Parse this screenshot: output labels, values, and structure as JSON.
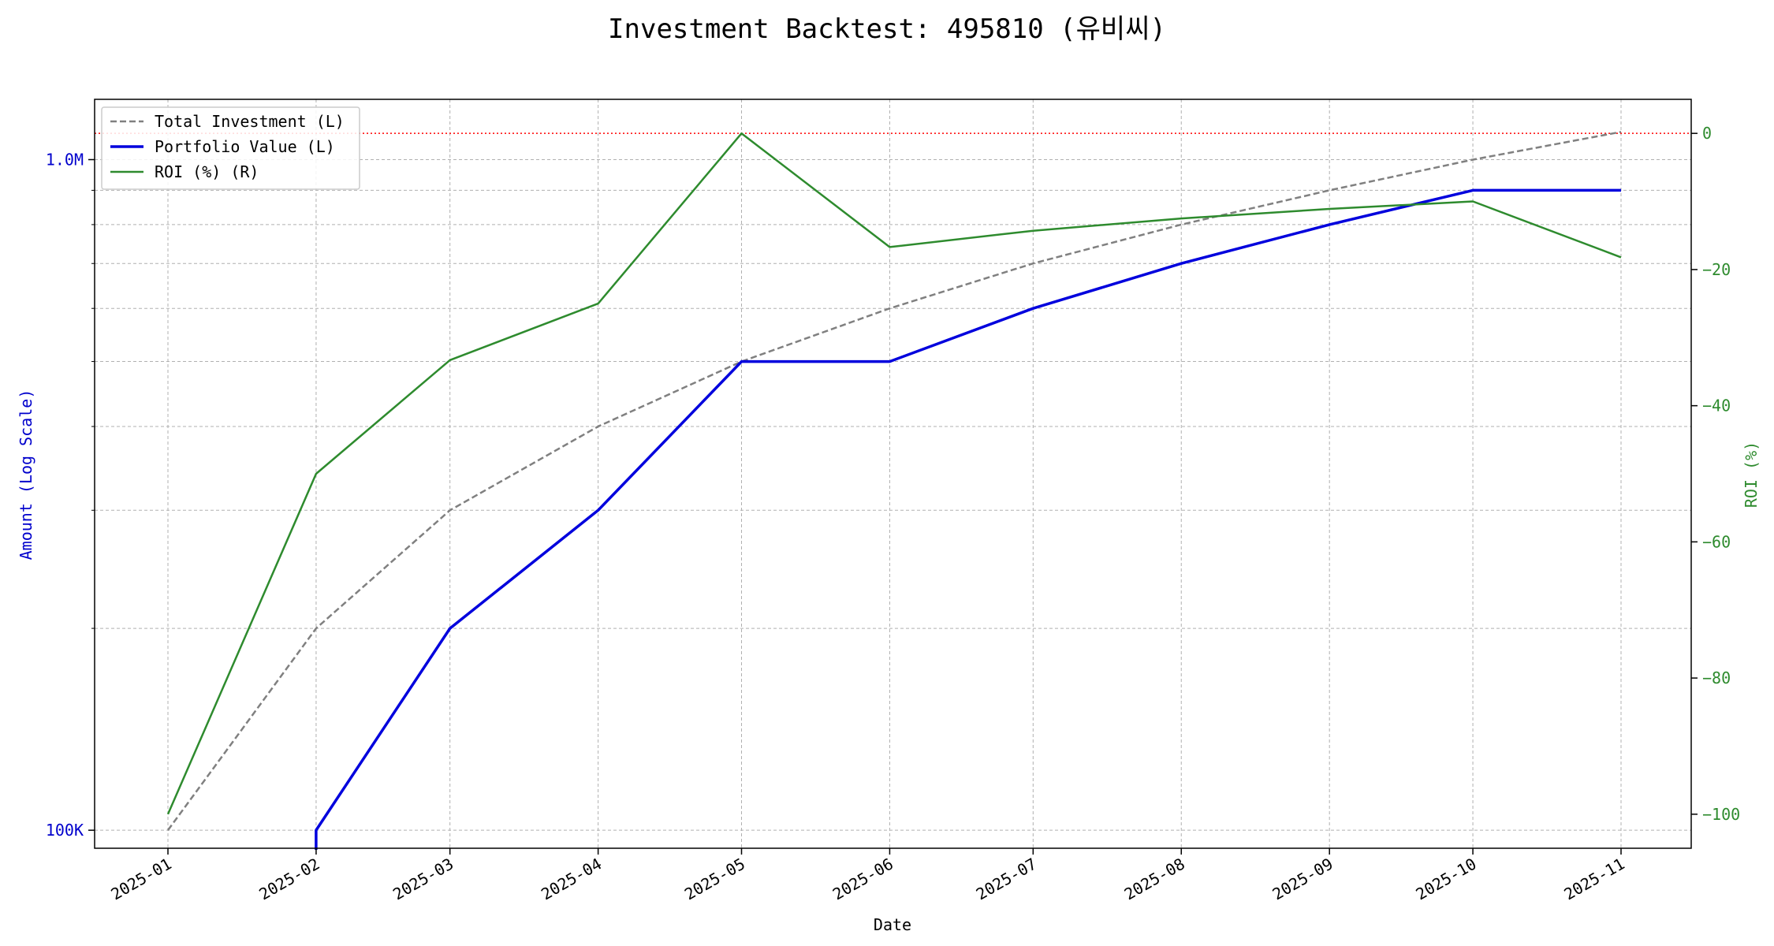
{
  "chart_data": {
    "type": "line",
    "title": "Investment Backtest: 495810 (유비씨)",
    "xlabel": "Date",
    "ylabel_left": "Amount (Log Scale)",
    "ylabel_right": "ROI (%)",
    "x": [
      "2025-01",
      "2025-02",
      "2025-03",
      "2025-04",
      "2025-05",
      "2025-06",
      "2025-07",
      "2025-08",
      "2025-09",
      "2025-10",
      "2025-11"
    ],
    "x_dates": [
      "2024-12-31",
      "2025-01-31",
      "2025-02-28",
      "2025-03-31",
      "2025-04-30",
      "2025-05-31",
      "2025-06-30",
      "2025-07-31",
      "2025-08-31",
      "2025-09-30",
      "2025-10-31"
    ],
    "left_axis": {
      "scale": "log",
      "ylim": [
        94000,
        1230000
      ],
      "ticks": [
        100000,
        1000000
      ],
      "tick_labels": [
        "100K",
        "1.0M"
      ],
      "color": "#0000cc"
    },
    "right_axis": {
      "ylim": [
        -105,
        5
      ],
      "ticks": [
        0,
        -20,
        -40,
        -60,
        -80,
        -100
      ],
      "tick_labels": [
        "0",
        "−20",
        "−40",
        "−60",
        "−80",
        "−100"
      ],
      "color": "#2e8b2e"
    },
    "series": [
      {
        "name": "Total Investment (L)",
        "axis": "left",
        "color": "#808080",
        "style": "dashed",
        "values": [
          100000,
          200000,
          300000,
          400000,
          500000,
          600000,
          700000,
          800000,
          900000,
          1000000,
          1100000
        ]
      },
      {
        "name": "Portfolio Value (L)",
        "axis": "left",
        "color": "#0000dd",
        "style": "solid",
        "values": [
          null,
          100000,
          200000,
          300000,
          500000,
          500000,
          600000,
          700000,
          800000,
          900000,
          900000
        ],
        "note_start": 90000
      },
      {
        "name": "ROI (%) (R)",
        "axis": "right",
        "color": "#2e8b2e",
        "style": "solid",
        "values": [
          -100,
          -50,
          -33.3,
          -25,
          0,
          -16.7,
          -14.3,
          -12.5,
          -11.1,
          -10,
          -18.2
        ]
      }
    ],
    "reference_line": {
      "axis": "right",
      "value": 0,
      "color": "#ff0000",
      "style": "dotted"
    },
    "grid": true,
    "legend": "top-left"
  }
}
